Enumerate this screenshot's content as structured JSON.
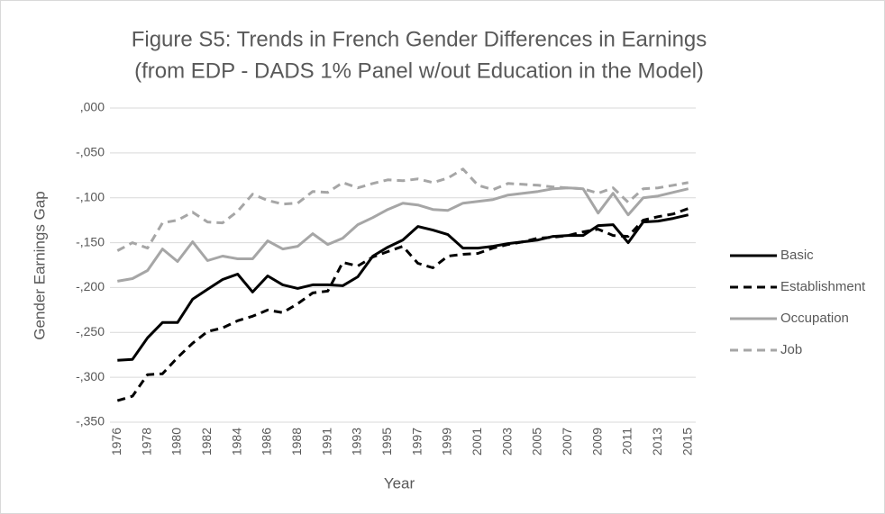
{
  "chart_data": {
    "type": "line",
    "title": [
      "Figure S5: Trends in French Gender Differences in Earnings",
      "(from EDP - DADS 1% Panel w/out Education in the Model)"
    ],
    "x_label": "Year",
    "y_label": "Gender Earnings Gap",
    "categories": [
      "1976",
      null,
      "1978",
      null,
      "1980",
      null,
      "1982",
      null,
      "1984",
      null,
      "1986",
      null,
      "1988",
      null,
      "1991",
      null,
      "1993",
      null,
      "1995",
      null,
      "1997",
      null,
      "1999",
      null,
      "2001",
      null,
      "2003",
      null,
      "2005",
      null,
      "2007",
      null,
      "2009",
      null,
      "2011",
      null,
      "2013",
      null,
      "2015"
    ],
    "ylim": [
      -0.35,
      0
    ],
    "yticks": [
      {
        "value": 0,
        "label": ",000"
      },
      {
        "value": -0.05,
        "label": "-,050"
      },
      {
        "value": -0.1,
        "label": "-,100"
      },
      {
        "value": -0.15,
        "label": "-,150"
      },
      {
        "value": -0.2,
        "label": "-,200"
      },
      {
        "value": -0.25,
        "label": "-,250"
      },
      {
        "value": -0.3,
        "label": "-,300"
      },
      {
        "value": -0.35,
        "label": "-,350"
      }
    ],
    "grid": true,
    "legend": "right",
    "series": [
      {
        "name": "Basic",
        "color": "#000000",
        "dashed": false,
        "values": [
          -0.281,
          -0.28,
          -0.256,
          -0.239,
          -0.239,
          -0.213,
          -0.202,
          -0.191,
          -0.185,
          -0.205,
          -0.187,
          -0.197,
          -0.201,
          -0.197,
          -0.197,
          -0.198,
          -0.188,
          -0.165,
          -0.155,
          -0.147,
          -0.132,
          -0.136,
          -0.141,
          -0.156,
          -0.156,
          -0.154,
          -0.151,
          -0.149,
          -0.147,
          -0.143,
          -0.142,
          -0.142,
          -0.131,
          -0.13,
          -0.15,
          -0.127,
          -0.126,
          -0.123,
          -0.119
        ]
      },
      {
        "name": "Establishment",
        "color": "#000000",
        "dashed": true,
        "values": [
          -0.326,
          -0.321,
          -0.297,
          -0.296,
          -0.278,
          -0.262,
          -0.249,
          -0.245,
          -0.237,
          -0.232,
          -0.225,
          -0.228,
          -0.218,
          -0.206,
          -0.204,
          -0.172,
          -0.176,
          -0.166,
          -0.16,
          -0.154,
          -0.173,
          -0.178,
          -0.165,
          -0.163,
          -0.162,
          -0.156,
          -0.152,
          -0.149,
          -0.145,
          -0.144,
          -0.142,
          -0.138,
          -0.135,
          -0.142,
          -0.143,
          -0.125,
          -0.121,
          -0.118,
          -0.112
        ]
      },
      {
        "name": "Occupation",
        "color": "#a6a6a6",
        "dashed": false,
        "values": [
          -0.193,
          -0.19,
          -0.181,
          -0.157,
          -0.171,
          -0.149,
          -0.17,
          -0.165,
          -0.168,
          -0.168,
          -0.148,
          -0.157,
          -0.154,
          -0.14,
          -0.152,
          -0.145,
          -0.13,
          -0.122,
          -0.113,
          -0.106,
          -0.108,
          -0.113,
          -0.114,
          -0.106,
          -0.104,
          -0.102,
          -0.097,
          -0.095,
          -0.093,
          -0.09,
          -0.089,
          -0.09,
          -0.117,
          -0.095,
          -0.119,
          -0.1,
          -0.098,
          -0.094,
          -0.09
        ]
      },
      {
        "name": "Job",
        "color": "#a6a6a6",
        "dashed": true,
        "values": [
          -0.159,
          -0.15,
          -0.156,
          -0.128,
          -0.125,
          -0.116,
          -0.127,
          -0.128,
          -0.115,
          -0.096,
          -0.103,
          -0.107,
          -0.106,
          -0.093,
          -0.094,
          -0.083,
          -0.089,
          -0.084,
          -0.08,
          -0.081,
          -0.079,
          -0.083,
          -0.078,
          -0.068,
          -0.086,
          -0.091,
          -0.084,
          -0.085,
          -0.086,
          -0.088,
          -0.089,
          -0.09,
          -0.095,
          -0.089,
          -0.105,
          -0.09,
          -0.089,
          -0.086,
          -0.083
        ]
      }
    ]
  }
}
